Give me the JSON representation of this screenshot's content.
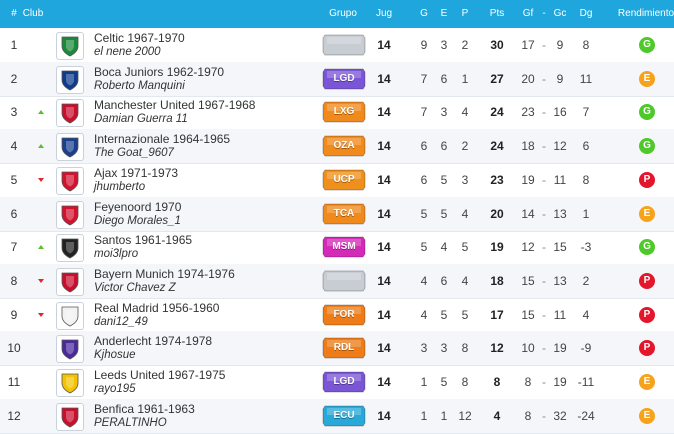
{
  "columns": {
    "pos": "#",
    "club": "Club",
    "group": "Grupo",
    "played": "Jug",
    "won": "G",
    "draw": "E",
    "lost": "P",
    "pts": "Pts",
    "gf": "Gf",
    "dash": "-",
    "gc": "Gc",
    "dg": "Dg",
    "perf": "Rendimiento"
  },
  "colors": {
    "header": "#1fa6dd",
    "G": "#4ec92a",
    "E": "#f7a21b",
    "P": "#e4162b"
  },
  "rows": [
    {
      "pos": "1",
      "trend": "",
      "crest": "celtic-crest-icon",
      "crest_color": "#1a8a3a",
      "club": "Celtic 1967-1970",
      "manager": "el nene 2000",
      "group": "",
      "group_color": "#c8cdd3",
      "played": "14",
      "won": "9",
      "draw": "3",
      "lost": "2",
      "pts": "30",
      "gf": "17",
      "dash": "-",
      "gc": "9",
      "dg": "8",
      "perf": "G"
    },
    {
      "pos": "2",
      "trend": "",
      "crest": "boca-juniors-crest-icon",
      "crest_color": "#0e3b8a",
      "club": "Boca Juniors 1962-1970",
      "manager": "Roberto Manquini",
      "group": "LGD",
      "group_color": "#7a56d6",
      "played": "14",
      "won": "7",
      "draw": "6",
      "lost": "1",
      "pts": "27",
      "gf": "20",
      "dash": "-",
      "gc": "9",
      "dg": "11",
      "perf": "E"
    },
    {
      "pos": "3",
      "trend": "up",
      "crest": "manchester-united-crest-icon",
      "crest_color": "#c8102e",
      "club": "Manchester United 1967-1968",
      "manager": "Damian Guerra 11",
      "group": "LXG",
      "group_color": "#f08a1c",
      "played": "14",
      "won": "7",
      "draw": "3",
      "lost": "4",
      "pts": "24",
      "gf": "23",
      "dash": "-",
      "gc": "16",
      "dg": "7",
      "perf": "G"
    },
    {
      "pos": "4",
      "trend": "up",
      "crest": "internazionale-crest-icon",
      "crest_color": "#1b3f8f",
      "club": "Internazionale 1964-1965",
      "manager": "The Goat_9607",
      "group": "OZA",
      "group_color": "#f08a1c",
      "played": "14",
      "won": "6",
      "draw": "6",
      "lost": "2",
      "pts": "24",
      "gf": "18",
      "dash": "-",
      "gc": "12",
      "dg": "6",
      "perf": "G"
    },
    {
      "pos": "5",
      "trend": "down",
      "crest": "ajax-crest-icon",
      "crest_color": "#d2122e",
      "club": "Ajax 1971-1973",
      "manager": "jhumberto",
      "group": "UCP",
      "group_color": "#f0901c",
      "played": "14",
      "won": "6",
      "draw": "5",
      "lost": "3",
      "pts": "23",
      "gf": "19",
      "dash": "-",
      "gc": "11",
      "dg": "8",
      "perf": "P"
    },
    {
      "pos": "6",
      "trend": "",
      "crest": "feyenoord-crest-icon",
      "crest_color": "#d2122e",
      "club": "Feyenoord 1970",
      "manager": "Diego Morales_1",
      "group": "TCA",
      "group_color": "#f08a1c",
      "played": "14",
      "won": "5",
      "draw": "5",
      "lost": "4",
      "pts": "20",
      "gf": "14",
      "dash": "-",
      "gc": "13",
      "dg": "1",
      "perf": "E"
    },
    {
      "pos": "7",
      "trend": "up",
      "crest": "santos-crest-icon",
      "crest_color": "#222222",
      "club": "Santos 1961-1965",
      "manager": "moi3lpro",
      "group": "MSM",
      "group_color": "#d42ab8",
      "played": "14",
      "won": "5",
      "draw": "4",
      "lost": "5",
      "pts": "19",
      "gf": "12",
      "dash": "-",
      "gc": "15",
      "dg": "-3",
      "perf": "G"
    },
    {
      "pos": "8",
      "trend": "down",
      "crest": "bayern-munich-crest-icon",
      "crest_color": "#c8102e",
      "club": "Bayern Munich 1974-1976",
      "manager": "Victor Chavez Z",
      "group": "",
      "group_color": "#c8cdd3",
      "played": "14",
      "won": "4",
      "draw": "6",
      "lost": "4",
      "pts": "18",
      "gf": "15",
      "dash": "-",
      "gc": "13",
      "dg": "2",
      "perf": "P"
    },
    {
      "pos": "9",
      "trend": "down",
      "crest": "real-madrid-crest-icon",
      "crest_color": "#f2f2f2",
      "club": "Real Madrid 1956-1960",
      "manager": "dani12_49",
      "group": "FOR",
      "group_color": "#ee7d19",
      "played": "14",
      "won": "4",
      "draw": "5",
      "lost": "5",
      "pts": "17",
      "gf": "15",
      "dash": "-",
      "gc": "11",
      "dg": "4",
      "perf": "P"
    },
    {
      "pos": "10",
      "trend": "",
      "crest": "anderlecht-crest-icon",
      "crest_color": "#4a2a9a",
      "club": "Anderlecht 1974-1978",
      "manager": "Kjhosue",
      "group": "RDL",
      "group_color": "#ee7d19",
      "played": "14",
      "won": "3",
      "draw": "3",
      "lost": "8",
      "pts": "12",
      "gf": "10",
      "dash": "-",
      "gc": "19",
      "dg": "-9",
      "perf": "P"
    },
    {
      "pos": "11",
      "trend": "",
      "crest": "leeds-united-crest-icon",
      "crest_color": "#f3c300",
      "club": "Leeds United 1967-1975",
      "manager": "rayo195",
      "group": "LGD",
      "group_color": "#7a56d6",
      "played": "14",
      "won": "1",
      "draw": "5",
      "lost": "8",
      "pts": "8",
      "gf": "8",
      "dash": "-",
      "gc": "19",
      "dg": "-11",
      "perf": "E"
    },
    {
      "pos": "12",
      "trend": "",
      "crest": "benfica-crest-icon",
      "crest_color": "#c8102e",
      "club": "Benfica 1961-1963",
      "manager": "PERALTINHO",
      "group": "ECU",
      "group_color": "#2aa8d8",
      "played": "14",
      "won": "1",
      "draw": "1",
      "lost": "12",
      "pts": "4",
      "gf": "8",
      "dash": "-",
      "gc": "32",
      "dg": "-24",
      "perf": "E"
    }
  ]
}
